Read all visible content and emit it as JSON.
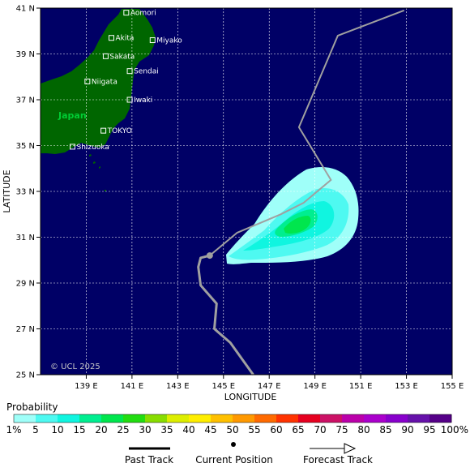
{
  "map": {
    "xlabel": "LONGITUDE",
    "ylabel": "LATITUDE",
    "lon_ticks": [
      "139 E",
      "141 E",
      "143 E",
      "145 E",
      "147 E",
      "149 E",
      "151 E",
      "153 E",
      "155 E"
    ],
    "lat_ticks": [
      "25 N",
      "27 N",
      "29 N",
      "31 N",
      "33 N",
      "35 N",
      "37 N",
      "39 N",
      "41 N"
    ],
    "country_label": "Japan",
    "copyright": "© UCL 2025",
    "colors": {
      "ocean": "#000066",
      "land": "#006600",
      "grid": "#ffffff",
      "track": "#a0a0a0"
    },
    "cities": [
      {
        "name": "Aomori",
        "lon": 140.75,
        "lat": 40.8
      },
      {
        "name": "Akita",
        "lon": 140.1,
        "lat": 39.7
      },
      {
        "name": "Miyako",
        "lon": 141.9,
        "lat": 39.6
      },
      {
        "name": "Sakata",
        "lon": 139.85,
        "lat": 38.9
      },
      {
        "name": "Sendai",
        "lon": 140.9,
        "lat": 38.25
      },
      {
        "name": "Niigata",
        "lon": 139.05,
        "lat": 37.8
      },
      {
        "name": "Iwaki",
        "lon": 140.9,
        "lat": 37.0
      },
      {
        "name": "TOKYO",
        "lon": 139.75,
        "lat": 35.65
      },
      {
        "name": "Shizuoka",
        "lon": 138.4,
        "lat": 34.95
      }
    ]
  },
  "track": {
    "past": [
      [
        146.3,
        25.0
      ],
      [
        145.3,
        26.4
      ],
      [
        144.6,
        27.0
      ],
      [
        144.7,
        28.1
      ],
      [
        144.0,
        28.9
      ],
      [
        143.9,
        29.7
      ],
      [
        144.0,
        30.1
      ],
      [
        144.4,
        30.2
      ]
    ],
    "current": [
      144.4,
      30.2
    ],
    "forecast": [
      [
        144.4,
        30.2
      ],
      [
        145.6,
        31.2
      ],
      [
        147.5,
        32.0
      ],
      [
        148.5,
        32.5
      ],
      [
        149.7,
        33.5
      ],
      [
        148.3,
        35.8
      ],
      [
        150.0,
        39.8
      ],
      [
        152.9,
        40.9
      ]
    ]
  },
  "legend": {
    "title": "Probability",
    "labels": [
      "1%",
      "5",
      "10",
      "15",
      "20",
      "25",
      "30",
      "35",
      "40",
      "45",
      "50",
      "55",
      "60",
      "65",
      "70",
      "75",
      "80",
      "85",
      "90",
      "95",
      "100%"
    ],
    "colors": [
      "#9ffff9",
      "#4ef9f1",
      "#10f5e0",
      "#00ee90",
      "#00e64d",
      "#22dd11",
      "#88dd00",
      "#ddee00",
      "#ffee00",
      "#ffc000",
      "#ff9900",
      "#ff6a00",
      "#ff3300",
      "#e60020",
      "#cc1166",
      "#bb00aa",
      "#aa00cc",
      "#8800cc",
      "#6611aa",
      "#550088"
    ],
    "key": {
      "past": "Past Track",
      "current": "Current Position",
      "forecast": "Forecast Track"
    }
  }
}
